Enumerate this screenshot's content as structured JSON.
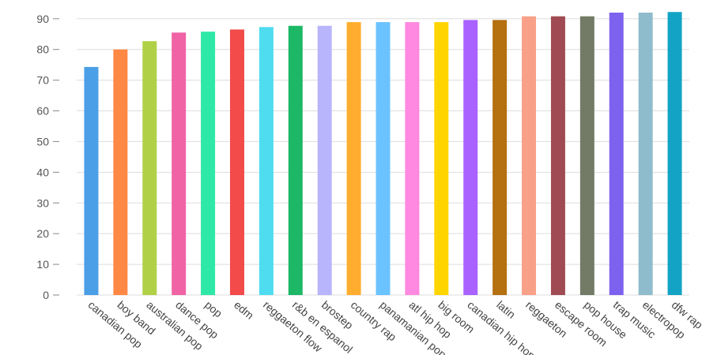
{
  "chart_data": {
    "type": "bar",
    "title": "",
    "xlabel": "",
    "ylabel": "",
    "ylim": [
      0,
      92
    ],
    "yticks": [
      0,
      10,
      20,
      30,
      40,
      50,
      60,
      70,
      80,
      90
    ],
    "grid": true,
    "legend": "none",
    "categories": [
      "canadian pop",
      "boy band",
      "australian pop",
      "dance pop",
      "pop",
      "edm",
      "reggaeton flow",
      "r&b en espanol",
      "brostep",
      "country rap",
      "panamanian pop",
      "atl hip hop",
      "big room",
      "canadian hip hop",
      "latin",
      "reggaeton",
      "escape room",
      "pop house",
      "trap music",
      "electropop",
      "dfw rap"
    ],
    "values": [
      74.3,
      80,
      82.7,
      85.5,
      85.8,
      86.5,
      87.3,
      87.7,
      87.7,
      88.9,
      88.9,
      88.9,
      88.9,
      89.6,
      89.6,
      90.8,
      90.8,
      90.8,
      92,
      92,
      92.2
    ],
    "colors": [
      "#4a9fe6",
      "#ff8845",
      "#b0d147",
      "#f063a5",
      "#2ee8a8",
      "#f34a4a",
      "#4fdcf0",
      "#1cb866",
      "#b8b5fc",
      "#ffad2e",
      "#6ac3ff",
      "#ff88e0",
      "#ffd500",
      "#a962ff",
      "#b5700f",
      "#f9a088",
      "#a04b53",
      "#737b66",
      "#7d61ef",
      "#8fbccc",
      "#12a3c5"
    ]
  }
}
